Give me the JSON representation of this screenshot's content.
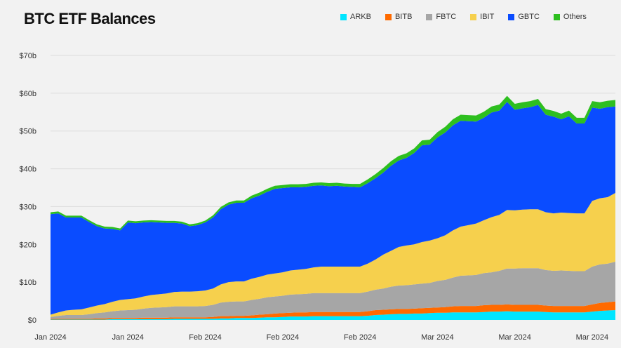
{
  "chart_data": {
    "type": "area",
    "stacked": true,
    "title": "BTC ETF Balances",
    "xlabel": "",
    "ylabel": "",
    "ylim": [
      0,
      70
    ],
    "yticks": [
      0,
      10,
      20,
      30,
      40,
      50,
      60,
      70
    ],
    "ytick_labels": [
      "$0",
      "$10b",
      "$20b",
      "$30b",
      "$40b",
      "$50b",
      "$60b",
      "$70b"
    ],
    "xtick_labels": [
      "Jan 2024",
      "Jan 2024",
      "Feb 2024",
      "Feb 2024",
      "Feb 2024",
      "Mar 2024",
      "Mar 2024",
      "Mar 2024"
    ],
    "xtick_positions": [
      0,
      10,
      20,
      30,
      40,
      50,
      60,
      70
    ],
    "x": [
      0,
      1,
      2,
      3,
      4,
      5,
      6,
      7,
      8,
      9,
      10,
      11,
      12,
      13,
      14,
      15,
      16,
      17,
      18,
      19,
      20,
      21,
      22,
      23,
      24,
      25,
      26,
      27,
      28,
      29,
      30,
      31,
      32,
      33,
      34,
      35,
      36,
      37,
      38,
      39,
      40,
      41,
      42,
      43,
      44,
      45,
      46,
      47,
      48,
      49,
      50,
      51,
      52,
      53,
      54,
      55,
      56,
      57,
      58,
      59,
      60,
      61,
      62,
      63,
      64,
      65,
      66,
      67,
      68,
      69,
      70,
      71,
      72,
      73
    ],
    "legend_position": "top-right",
    "series": [
      {
        "name": "ARKB",
        "color": "#00e5ff",
        "values": [
          0.1,
          0.1,
          0.1,
          0.1,
          0.1,
          0.1,
          0.1,
          0.1,
          0.2,
          0.2,
          0.2,
          0.2,
          0.2,
          0.2,
          0.2,
          0.2,
          0.3,
          0.3,
          0.3,
          0.3,
          0.3,
          0.3,
          0.4,
          0.4,
          0.5,
          0.5,
          0.5,
          0.6,
          0.7,
          0.7,
          0.8,
          0.9,
          0.9,
          0.9,
          1.0,
          1.0,
          1.0,
          1.0,
          1.0,
          1.0,
          1.0,
          1.1,
          1.3,
          1.4,
          1.5,
          1.6,
          1.6,
          1.7,
          1.7,
          1.8,
          1.9,
          1.9,
          2.0,
          2.0,
          2.0,
          2.0,
          2.1,
          2.2,
          2.2,
          2.3,
          2.2,
          2.2,
          2.2,
          2.2,
          2.1,
          2.0,
          2.0,
          2.0,
          2.0,
          2.0,
          2.2,
          2.4,
          2.5,
          2.6
        ]
      },
      {
        "name": "BITB",
        "color": "#ff6a00",
        "values": [
          0.2,
          0.2,
          0.2,
          0.2,
          0.2,
          0.2,
          0.3,
          0.3,
          0.3,
          0.3,
          0.3,
          0.3,
          0.4,
          0.4,
          0.4,
          0.4,
          0.4,
          0.4,
          0.4,
          0.4,
          0.4,
          0.5,
          0.6,
          0.6,
          0.6,
          0.6,
          0.7,
          0.8,
          0.8,
          1.0,
          1.0,
          1.0,
          1.1,
          1.1,
          1.1,
          1.1,
          1.1,
          1.1,
          1.1,
          1.1,
          1.1,
          1.2,
          1.3,
          1.3,
          1.3,
          1.3,
          1.3,
          1.3,
          1.4,
          1.4,
          1.4,
          1.5,
          1.6,
          1.7,
          1.7,
          1.7,
          1.8,
          1.8,
          1.8,
          1.8,
          1.8,
          1.8,
          1.8,
          1.8,
          1.7,
          1.7,
          1.7,
          1.7,
          1.7,
          1.7,
          1.9,
          2.1,
          2.2,
          2.3
        ]
      },
      {
        "name": "FBTC",
        "color": "#a6a6a6",
        "values": [
          0.5,
          0.8,
          1.0,
          1.0,
          1.0,
          1.2,
          1.4,
          1.6,
          1.8,
          2.0,
          2.1,
          2.2,
          2.4,
          2.6,
          2.7,
          2.8,
          2.9,
          2.9,
          2.9,
          2.9,
          3.0,
          3.2,
          3.6,
          3.8,
          3.8,
          3.8,
          4.1,
          4.2,
          4.5,
          4.5,
          4.6,
          4.8,
          4.8,
          4.9,
          5.0,
          5.0,
          5.0,
          5.0,
          5.0,
          5.0,
          5.0,
          5.2,
          5.4,
          5.6,
          6.0,
          6.2,
          6.3,
          6.4,
          6.5,
          6.6,
          7.0,
          7.2,
          7.6,
          8.0,
          8.1,
          8.2,
          8.5,
          8.6,
          9.0,
          9.5,
          9.6,
          9.7,
          9.7,
          9.7,
          9.4,
          9.3,
          9.4,
          9.3,
          9.2,
          9.2,
          10.0,
          10.2,
          10.2,
          10.5
        ]
      },
      {
        "name": "IBIT",
        "color": "#f6d04d",
        "values": [
          0.6,
          0.9,
          1.2,
          1.4,
          1.5,
          1.8,
          2.0,
          2.2,
          2.5,
          2.8,
          2.9,
          3.0,
          3.2,
          3.4,
          3.5,
          3.6,
          3.8,
          3.9,
          3.9,
          4.0,
          4.1,
          4.3,
          4.8,
          5.2,
          5.3,
          5.3,
          5.6,
          5.8,
          6.0,
          6.1,
          6.2,
          6.4,
          6.5,
          6.6,
          6.8,
          7.0,
          7.0,
          7.0,
          7.0,
          7.0,
          7.0,
          7.4,
          8.0,
          9.0,
          9.5,
          10.2,
          10.5,
          10.6,
          11.0,
          11.2,
          11.3,
          11.8,
          12.5,
          13.0,
          13.3,
          13.6,
          14.0,
          14.6,
          14.8,
          15.5,
          15.4,
          15.5,
          15.6,
          15.6,
          15.3,
          15.2,
          15.3,
          15.3,
          15.3,
          15.3,
          17.4,
          17.5,
          17.6,
          18.2
        ]
      },
      {
        "name": "GBTC",
        "color": "#0a4cff",
        "values": [
          26.6,
          26.2,
          24.6,
          24.4,
          24.3,
          22.6,
          21.0,
          20.0,
          19.3,
          18.4,
          20.3,
          19.9,
          19.6,
          19.3,
          19.0,
          18.7,
          18.3,
          18.0,
          17.3,
          17.5,
          18.0,
          18.8,
          19.9,
          20.5,
          20.8,
          20.8,
          21.3,
          21.5,
          21.9,
          22.4,
          22.3,
          22.0,
          21.8,
          21.7,
          21.6,
          21.5,
          21.3,
          21.4,
          21.2,
          21.1,
          21.0,
          21.3,
          21.5,
          21.7,
          22.5,
          22.9,
          23.2,
          24.2,
          25.6,
          25.4,
          26.7,
          27.2,
          27.8,
          28.0,
          27.5,
          27.0,
          27.1,
          27.7,
          27.6,
          28.6,
          26.6,
          26.8,
          27.0,
          27.6,
          25.8,
          25.6,
          24.7,
          25.6,
          23.8,
          23.8,
          24.7,
          23.7,
          23.8,
          22.9
        ]
      },
      {
        "name": "Others",
        "color": "#2dbf1f",
        "values": [
          0.5,
          0.5,
          0.5,
          0.5,
          0.5,
          0.5,
          0.5,
          0.5,
          0.5,
          0.5,
          0.5,
          0.5,
          0.5,
          0.5,
          0.5,
          0.5,
          0.5,
          0.5,
          0.5,
          0.5,
          0.5,
          0.6,
          0.6,
          0.6,
          0.6,
          0.6,
          0.7,
          0.8,
          0.8,
          0.8,
          0.8,
          0.8,
          0.8,
          0.8,
          0.8,
          0.8,
          0.8,
          0.8,
          0.8,
          0.8,
          0.9,
          1.0,
          1.1,
          1.2,
          1.2,
          1.2,
          1.2,
          1.2,
          1.3,
          1.3,
          1.4,
          1.5,
          1.6,
          1.6,
          1.6,
          1.6,
          1.6,
          1.6,
          1.6,
          1.6,
          1.6,
          1.6,
          1.6,
          1.6,
          1.5,
          1.5,
          1.5,
          1.5,
          1.5,
          1.5,
          1.7,
          1.7,
          1.7,
          1.7
        ]
      }
    ]
  }
}
